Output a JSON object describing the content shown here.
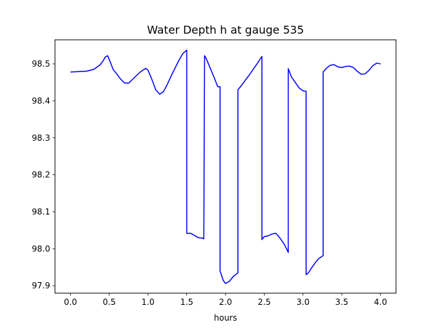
{
  "chart_data": {
    "type": "line",
    "title": "Water Depth h at gauge 535",
    "xlabel": "hours",
    "ylabel": "",
    "xlim": [
      -0.2,
      4.2
    ],
    "ylim": [
      97.88,
      98.565
    ],
    "xticks": [
      0.0,
      0.5,
      1.0,
      1.5,
      2.0,
      2.5,
      3.0,
      3.5,
      4.0
    ],
    "xtick_labels": [
      "0.0",
      "0.5",
      "1.0",
      "1.5",
      "2.0",
      "2.5",
      "3.0",
      "3.5",
      "4.0"
    ],
    "yticks": [
      97.9,
      98.0,
      98.1,
      98.2,
      98.3,
      98.4,
      98.5
    ],
    "ytick_labels": [
      "97.9",
      "98.0",
      "98.1",
      "98.2",
      "98.3",
      "98.4",
      "98.5"
    ],
    "grid": false,
    "legend": "none",
    "series": [
      {
        "color": "#0000ff",
        "x": [
          0.0,
          0.2,
          0.3,
          0.38,
          0.42,
          0.45,
          0.48,
          0.5,
          0.55,
          0.6,
          0.65,
          0.7,
          0.75,
          0.8,
          0.9,
          0.97,
          1.0,
          1.05,
          1.1,
          1.15,
          1.2,
          1.25,
          1.3,
          1.4,
          1.45,
          1.5,
          1.5,
          1.55,
          1.6,
          1.65,
          1.7,
          1.72,
          1.73,
          1.75,
          1.8,
          1.85,
          1.9,
          1.93,
          1.93,
          1.97,
          2.0,
          2.05,
          2.1,
          2.13,
          2.16,
          2.16,
          2.2,
          2.3,
          2.4,
          2.47,
          2.47,
          2.5,
          2.55,
          2.6,
          2.65,
          2.7,
          2.75,
          2.8,
          2.81,
          2.81,
          2.85,
          2.9,
          2.95,
          3.0,
          3.04,
          3.04,
          3.07,
          3.1,
          3.15,
          3.2,
          3.25,
          3.26,
          3.26,
          3.3,
          3.35,
          3.4,
          3.45,
          3.5,
          3.55,
          3.6,
          3.65,
          3.7,
          3.75,
          3.8,
          3.85,
          3.9,
          3.95,
          4.0
        ],
        "y": [
          98.478,
          98.48,
          98.485,
          98.497,
          98.508,
          98.519,
          98.522,
          98.512,
          98.485,
          98.472,
          98.458,
          98.448,
          98.448,
          98.458,
          98.478,
          98.488,
          98.483,
          98.458,
          98.43,
          98.418,
          98.425,
          98.445,
          98.468,
          98.51,
          98.528,
          98.537,
          98.042,
          98.042,
          98.036,
          98.03,
          98.029,
          98.027,
          98.522,
          98.515,
          98.49,
          98.465,
          98.438,
          98.438,
          97.94,
          97.915,
          97.906,
          97.912,
          97.925,
          97.93,
          97.935,
          98.43,
          98.44,
          98.468,
          98.498,
          98.52,
          98.025,
          98.033,
          98.035,
          98.04,
          98.042,
          98.03,
          98.015,
          97.995,
          97.99,
          98.487,
          98.465,
          98.45,
          98.435,
          98.427,
          98.426,
          97.93,
          97.935,
          97.945,
          97.96,
          97.973,
          97.98,
          97.982,
          98.478,
          98.488,
          98.496,
          98.498,
          98.492,
          98.49,
          98.493,
          98.494,
          98.49,
          98.48,
          98.472,
          98.473,
          98.482,
          98.495,
          98.502,
          98.5
        ]
      }
    ]
  }
}
